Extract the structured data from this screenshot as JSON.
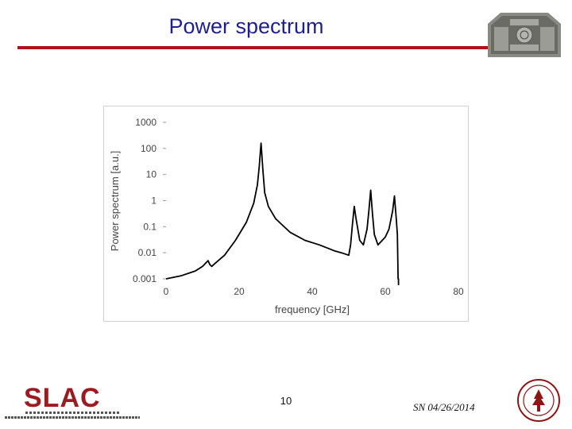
{
  "slide": {
    "title": "Power spectrum",
    "page_number": "10",
    "date": "SN 04/26/2014"
  },
  "colors": {
    "title": "#1f1f8f",
    "rule": "#b4101c",
    "slac": "#9b1b20",
    "seal": "#8c1515",
    "trace": "#000000"
  },
  "logo": {
    "name": "SLAC",
    "icon": "slac-logo"
  },
  "seal": {
    "icon": "stanford-seal-icon"
  },
  "photo": {
    "icon": "device-photo"
  },
  "chart_data": {
    "type": "line",
    "xlabel": "frequency [GHz]",
    "ylabel": "Power spectrum [a.u.]",
    "xlim": [
      0,
      80
    ],
    "ylim": [
      0.001,
      1000
    ],
    "yscale": "log",
    "x_ticks": [
      "0",
      "20",
      "40",
      "60",
      "80"
    ],
    "y_ticks": [
      "1000",
      "100",
      "10",
      "1",
      "0.1",
      "0.01",
      "0.001"
    ],
    "grid": false,
    "series": [
      {
        "x": [
          0,
          4,
          8,
          10,
          11.5,
          12,
          12.5,
          13.5,
          16,
          19,
          22,
          24,
          25,
          25.5,
          26,
          26.5,
          27,
          28,
          30,
          34,
          38,
          42,
          46,
          48,
          49,
          50,
          50.5,
          51,
          51.5,
          52,
          53,
          54,
          55,
          55.5,
          56,
          56.5,
          57,
          58,
          60,
          61,
          62,
          62.5,
          63,
          63.3,
          63.5,
          63.6
        ],
        "y": [
          0.001,
          0.0013,
          0.002,
          0.003,
          0.005,
          0.0035,
          0.003,
          0.004,
          0.008,
          0.03,
          0.15,
          0.8,
          4,
          20,
          160,
          15,
          2,
          0.6,
          0.2,
          0.06,
          0.03,
          0.02,
          0.012,
          0.01,
          0.009,
          0.008,
          0.02,
          0.12,
          0.6,
          0.2,
          0.03,
          0.02,
          0.08,
          0.4,
          2.5,
          0.3,
          0.05,
          0.02,
          0.04,
          0.08,
          0.4,
          1.5,
          0.2,
          0.05,
          0.001,
          0.001
        ]
      }
    ]
  }
}
